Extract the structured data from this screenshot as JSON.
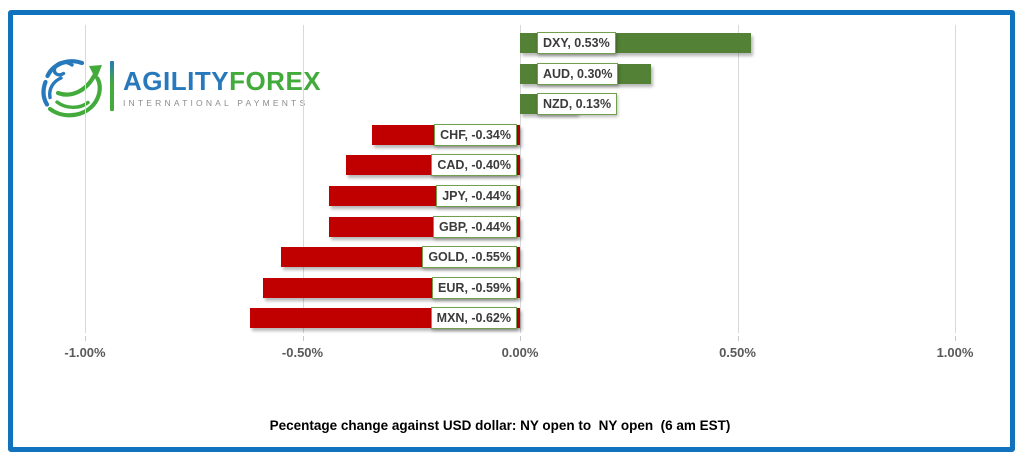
{
  "frame": {
    "border_color": "#1172BD"
  },
  "logo": {
    "brand_primary": "AGILITY",
    "brand_secondary": "FOREX",
    "tagline": "INTERNATIONAL PAYMENTS",
    "primary_color": "#2779BB",
    "secondary_color": "#43AA3C",
    "tagline_color": "#8A8C8E"
  },
  "chart_data": {
    "type": "bar",
    "orientation": "horizontal",
    "title": "Pecentage change against USD dollar: NY open to  NY open  (6 am EST)",
    "categories": [
      "DXY",
      "AUD",
      "NZD",
      "CHF",
      "CAD",
      "JPY",
      "GBP",
      "GOLD",
      "EUR",
      "MXN"
    ],
    "values": [
      0.53,
      0.3,
      0.13,
      -0.34,
      -0.4,
      -0.44,
      -0.44,
      -0.55,
      -0.59,
      -0.62
    ],
    "data_labels": [
      "DXY, 0.53%",
      "AUD, 0.30%",
      "NZD, 0.13%",
      "CHF, -0.34%",
      "CAD, -0.40%",
      "JPY, -0.44%",
      "GBP, -0.44%",
      "GOLD, -0.55%",
      "EUR, -0.59%",
      "MXN, -0.62%"
    ],
    "xlabel": "",
    "ylabel": "",
    "xlim": [
      -1.0,
      1.0
    ],
    "x_ticks": {
      "values": [
        -1.0,
        -0.5,
        0.0,
        0.5,
        1.0
      ],
      "labels": [
        "-1.00%",
        "-0.50%",
        "0.00%",
        "0.50%",
        "1.00%"
      ]
    },
    "grid": "vertical-gridlines-on",
    "legend": "none",
    "positive_color": "#538135",
    "negative_color": "#C00000",
    "gridline_color": "#D9D9D9",
    "axis_text_color": "#595959",
    "label_border_color": "#70A04E",
    "label_text_color": "#3B3B3B"
  }
}
